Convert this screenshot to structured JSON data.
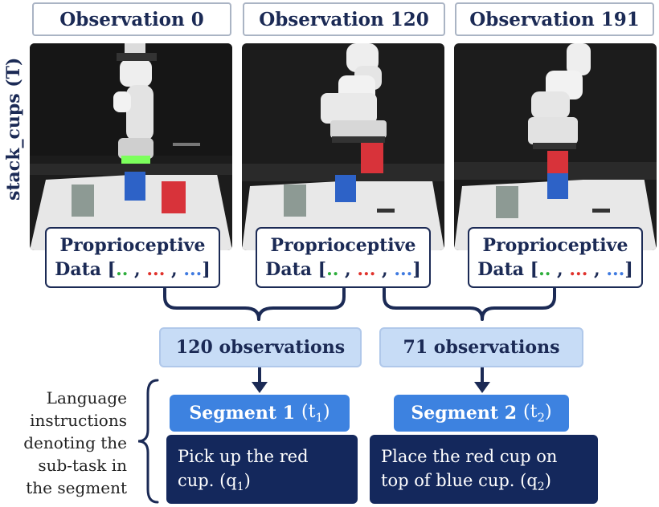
{
  "side_label": "stack_cups (T)",
  "observations": [
    {
      "title": "Observation 0"
    },
    {
      "title": "Observation 120"
    },
    {
      "title": "Observation 191"
    }
  ],
  "proprio": {
    "line1": "Proprioceptive",
    "line2_prefix": "Data [",
    "dots_green": "..",
    "sep1": " , ",
    "dots_red": "...",
    "sep2": " , ",
    "dots_blue": "...",
    "line2_suffix": "]"
  },
  "counts": [
    {
      "label": "120 observations"
    },
    {
      "label": "71 observations"
    }
  ],
  "segments": [
    {
      "title": "Segment 1",
      "param": "(t",
      "sub": "1",
      "close": ")",
      "instruction_line1": "Pick up the red",
      "instruction_line2": "cup. (q",
      "isub": "1",
      "iclose": ")"
    },
    {
      "title": "Segment 2",
      "param": "(t",
      "sub": "2",
      "close": ")",
      "instruction_line1": "Place the red cup on",
      "instruction_line2": "top of blue cup. (q",
      "isub": "2",
      "iclose": ")"
    }
  ],
  "language_label": [
    "Language",
    "instructions",
    "denoting the",
    "sub-task in",
    "the segment"
  ],
  "colors": {
    "navy": "#1b2a55",
    "segment_blue": "#3d82e0",
    "count_bg": "#c7dcf6",
    "instruction_bg": "#14285c",
    "cup_red": "#d8333a",
    "cup_blue": "#2d62c7",
    "cup_gray": "#8d9a94"
  }
}
